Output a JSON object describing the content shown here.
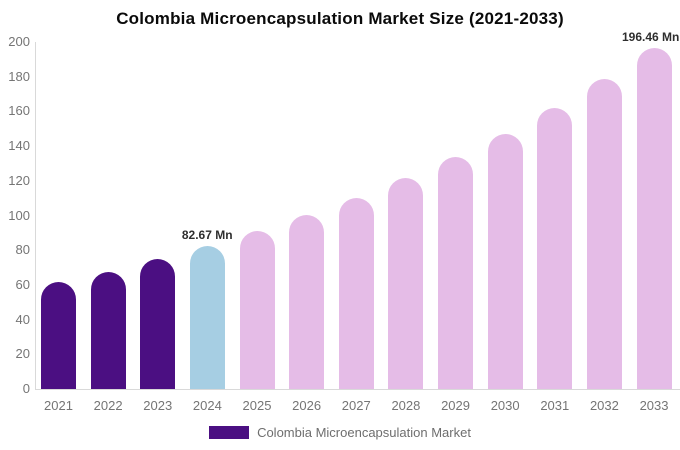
{
  "chart_data": {
    "type": "bar",
    "title": "Colombia Microencapsulation Market Size (2021-2033)",
    "categories": [
      "2021",
      "2022",
      "2023",
      "2024",
      "2025",
      "2026",
      "2027",
      "2028",
      "2029",
      "2030",
      "2031",
      "2032",
      "2033"
    ],
    "values": [
      61.7,
      67.4,
      74.9,
      82.67,
      91.01,
      100.2,
      110.31,
      121.45,
      133.71,
      147.2,
      162.06,
      178.42,
      196.46
    ],
    "unit": "Mn",
    "xlabel": "",
    "ylabel": "",
    "ylim": [
      0,
      200
    ],
    "ytick_step": 20,
    "grid": false,
    "segments": [
      "historical",
      "historical",
      "historical",
      "current",
      "forecast",
      "forecast",
      "forecast",
      "forecast",
      "forecast",
      "forecast",
      "forecast",
      "forecast",
      "forecast"
    ],
    "colors": {
      "historical": "#4B0F82",
      "current": "#A6CEE3",
      "forecast": "#E5BCE7"
    },
    "annotations": [
      {
        "category": "2024",
        "text": "82.67 Mn"
      },
      {
        "category": "2033",
        "text": "196.46 Mn"
      }
    ],
    "legend": {
      "label": "Colombia Microencapsulation Market",
      "position": "bottom",
      "swatch_color": "#4B0F82"
    }
  },
  "style_colors": {
    "axis_line": "#D9D9D9",
    "tick_text": "#757575",
    "title_text": "#0A0A0A",
    "annotation_text": "#2E2E2E",
    "legend_text": "#6E6E6E"
  }
}
